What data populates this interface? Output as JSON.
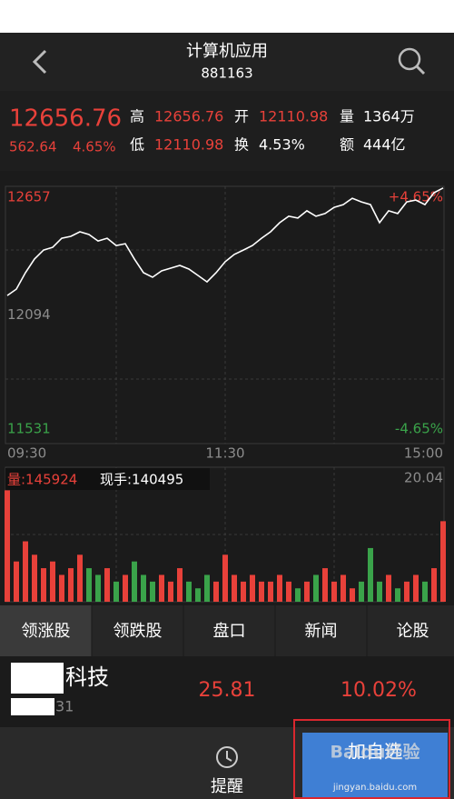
{
  "header": {
    "title": "计算机应用",
    "code": "881163"
  },
  "quote": {
    "price": "12656.76",
    "change": "562.64",
    "change_pct": "4.65%",
    "high_label": "高",
    "high": "12656.76",
    "open_label": "开",
    "open": "12110.98",
    "volume_label": "量",
    "volume": "1364万",
    "low_label": "低",
    "low": "12110.98",
    "turnover_label": "换",
    "turnover": "4.53%",
    "amount_label": "额",
    "amount": "444亿"
  },
  "chart_data": [
    {
      "type": "line",
      "color": "#ffffff",
      "up_color": "#e8413a",
      "down_color": "#3aa34a",
      "neutral_color": "#8c8c8c",
      "values": [
        12179,
        12207,
        12279,
        12339,
        12378,
        12390,
        12430,
        12438,
        12458,
        12446,
        12418,
        12430,
        12398,
        12406,
        12339,
        12279,
        12259,
        12287,
        12299,
        12311,
        12295,
        12267,
        12239,
        12279,
        12327,
        12359,
        12378,
        12398,
        12430,
        12458,
        12498,
        12526,
        12518,
        12550,
        12526,
        12538,
        12565,
        12577,
        12605,
        12589,
        12577,
        12498,
        12550,
        12538,
        12589,
        12597,
        12577,
        12629,
        12650
      ],
      "ylim": [
        11531,
        12657
      ],
      "yticks": [
        12657,
        12094,
        11531
      ],
      "y2lim": [
        -4.65,
        4.65
      ],
      "y2ticks": [
        {
          "value": 4.65,
          "label": "+4.65%"
        },
        {
          "value": -4.65,
          "label": "-4.65%"
        }
      ],
      "time_labels": [
        "09:30",
        "11:30",
        "15:00"
      ]
    },
    {
      "type": "bar",
      "volume_label": "量:145924",
      "hand_label": "现手:140495",
      "up_color": "#e8413a",
      "down_color": "#3aa34a",
      "values": [
        16.6,
        6,
        9,
        7,
        5,
        6,
        4,
        5,
        7,
        5,
        4,
        5,
        3,
        4,
        6,
        4,
        3,
        4,
        3,
        5,
        3,
        2,
        4,
        3,
        7,
        4,
        3,
        4,
        3,
        3,
        4,
        3,
        2,
        3,
        4,
        5,
        3,
        4,
        2,
        3,
        8,
        3,
        4,
        2,
        3,
        4,
        3,
        5,
        12
      ],
      "ylim": [
        0,
        20.04
      ],
      "yticks": [
        20.04
      ]
    }
  ],
  "tabs": [
    "领涨股",
    "领跌股",
    "盘口",
    "新闻",
    "论股"
  ],
  "stock_row": {
    "name": "科技",
    "price": "25.81",
    "change_pct": "10.02%",
    "code": "31"
  },
  "bottom_nav": {
    "alert": "提醒",
    "add": "加自选",
    "watermark": "Baidu经验",
    "watermark_url": "jingyan.baidu.com"
  }
}
